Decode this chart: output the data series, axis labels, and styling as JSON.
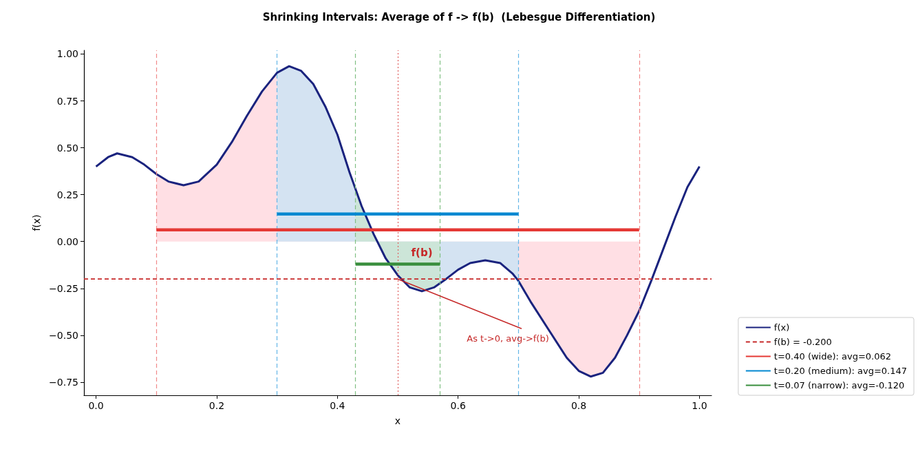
{
  "chart_data": {
    "type": "line",
    "title": "Shrinking Intervals: Average of f -> f(b)  (Lebesgue Differentiation)",
    "xlabel": "x",
    "ylabel": "f(x)",
    "xlim": [
      -0.02,
      1.02
    ],
    "ylim": [
      -0.82,
      1.02
    ],
    "xticks": [
      {
        "value": 0,
        "label": "0.0"
      },
      {
        "value": 0.2,
        "label": "0.2"
      },
      {
        "value": 0.4,
        "label": "0.4"
      },
      {
        "value": 0.6,
        "label": "0.6"
      },
      {
        "value": 0.8,
        "label": "0.8"
      },
      {
        "value": 1,
        "label": "1.0"
      }
    ],
    "yticks": [
      {
        "value": -0.75,
        "label": "−0.75"
      },
      {
        "value": -0.5,
        "label": "−0.50"
      },
      {
        "value": -0.25,
        "label": "−0.25"
      },
      {
        "value": 0,
        "label": "0.00"
      },
      {
        "value": 0.25,
        "label": "0.25"
      },
      {
        "value": 0.5,
        "label": "0.50"
      },
      {
        "value": 0.75,
        "label": "0.75"
      },
      {
        "value": 1,
        "label": "1.00"
      }
    ],
    "grid": false,
    "legend": "bottom right",
    "series": [
      {
        "name": "f(x)",
        "color": "#1a237e",
        "x": [
          0,
          0.02,
          0.035,
          0.06,
          0.08,
          0.1,
          0.12,
          0.145,
          0.17,
          0.2,
          0.225,
          0.25,
          0.275,
          0.3,
          0.32,
          0.34,
          0.36,
          0.38,
          0.4,
          0.42,
          0.44,
          0.46,
          0.48,
          0.5,
          0.52,
          0.54,
          0.56,
          0.58,
          0.6,
          0.62,
          0.645,
          0.67,
          0.69,
          0.7,
          0.72,
          0.75,
          0.78,
          0.8,
          0.82,
          0.84,
          0.86,
          0.88,
          0.9,
          0.92,
          0.94,
          0.96,
          0.98,
          1.0
        ],
        "values": [
          0.4,
          0.45,
          0.47,
          0.45,
          0.41,
          0.36,
          0.32,
          0.3,
          0.32,
          0.41,
          0.53,
          0.67,
          0.8,
          0.9,
          0.935,
          0.91,
          0.84,
          0.72,
          0.57,
          0.37,
          0.19,
          0.04,
          -0.09,
          -0.18,
          -0.245,
          -0.265,
          -0.245,
          -0.2,
          -0.15,
          -0.115,
          -0.1,
          -0.115,
          -0.17,
          -0.21,
          -0.32,
          -0.47,
          -0.62,
          -0.69,
          -0.72,
          -0.7,
          -0.62,
          -0.5,
          -0.37,
          -0.21,
          -0.04,
          0.13,
          0.29,
          0.4
        ]
      },
      {
        "name": "f(b) = -0.200",
        "color": "#c62828",
        "line_style": "dashed",
        "x": [
          -0.02,
          1.02
        ],
        "values": [
          -0.2,
          -0.2
        ]
      },
      {
        "name": "t=0.40 (wide): avg=0.062",
        "color": "#e53935",
        "x": [
          0.1,
          0.9
        ],
        "values": [
          0.062,
          0.062
        ]
      },
      {
        "name": "t=0.20 (medium): avg=0.147",
        "color": "#0288d1",
        "x": [
          0.3,
          0.7
        ],
        "values": [
          0.147,
          0.147
        ]
      },
      {
        "name": "t=0.07 (narrow): avg=-0.120",
        "color": "#388e3c",
        "x": [
          0.43,
          0.57
        ],
        "values": [
          -0.12,
          -0.12
        ]
      },
      {
        "type": "area",
        "color": "#ffdfe4",
        "x": [
          0.1,
          0.12,
          0.145,
          0.17,
          0.2,
          0.225,
          0.25,
          0.275,
          0.3,
          0.32,
          0.34,
          0.36,
          0.38,
          0.4,
          0.42,
          0.44,
          0.46,
          0.48,
          0.5,
          0.52,
          0.54,
          0.56,
          0.58,
          0.6,
          0.62,
          0.645,
          0.67,
          0.69,
          0.7,
          0.72,
          0.75,
          0.78,
          0.8,
          0.82,
          0.84,
          0.86,
          0.88,
          0.9
        ],
        "values": [
          0.36,
          0.32,
          0.3,
          0.32,
          0.41,
          0.53,
          0.67,
          0.8,
          0.9,
          0.935,
          0.91,
          0.84,
          0.72,
          0.57,
          0.37,
          0.19,
          0.04,
          -0.09,
          -0.18,
          -0.245,
          -0.265,
          -0.245,
          -0.2,
          -0.15,
          -0.115,
          -0.1,
          -0.115,
          -0.17,
          -0.21,
          -0.32,
          -0.47,
          -0.62,
          -0.69,
          -0.72,
          -0.7,
          -0.62,
          -0.5,
          -0.37
        ]
      },
      {
        "type": "area",
        "color": "#d4e3f2",
        "x": [
          0.3,
          0.32,
          0.34,
          0.36,
          0.38,
          0.4,
          0.42,
          0.44,
          0.46,
          0.48,
          0.5,
          0.52,
          0.54,
          0.56,
          0.58,
          0.6,
          0.62,
          0.645,
          0.67,
          0.69,
          0.7
        ],
        "values": [
          0.9,
          0.935,
          0.91,
          0.84,
          0.72,
          0.57,
          0.37,
          0.19,
          0.04,
          -0.09,
          -0.18,
          -0.245,
          -0.265,
          -0.245,
          -0.2,
          -0.15,
          -0.115,
          -0.1,
          -0.115,
          -0.17,
          -0.21
        ]
      },
      {
        "type": "area",
        "color": "#cce5d8",
        "x": [
          0.43,
          0.44,
          0.46,
          0.48,
          0.5,
          0.52,
          0.54,
          0.56,
          0.57
        ],
        "values": [
          0.28,
          0.19,
          0.04,
          -0.09,
          -0.18,
          -0.245,
          -0.265,
          -0.245,
          -0.225
        ]
      }
    ],
    "ref_lines": [
      {
        "axis": "x",
        "value": 0.1,
        "color": "#f08a8a",
        "line_style": "dashed"
      },
      {
        "axis": "x",
        "value": 0.9,
        "color": "#f08a8a",
        "line_style": "dashed"
      },
      {
        "axis": "x",
        "value": 0.3,
        "color": "#64b5e6",
        "line_style": "dashed"
      },
      {
        "axis": "x",
        "value": 0.7,
        "color": "#64b5e6",
        "line_style": "dashed"
      },
      {
        "axis": "x",
        "value": 0.43,
        "color": "#81c084",
        "line_style": "dashed"
      },
      {
        "axis": "x",
        "value": 0.57,
        "color": "#81c084",
        "line_style": "dashed"
      },
      {
        "axis": "x",
        "value": 0.5,
        "color": "#e06060",
        "line_style": "dotted"
      }
    ],
    "annotations": [
      {
        "text": "f(b)",
        "x": 0.54,
        "y": -0.12
      },
      {
        "text": "As t->0, avg->f(b)",
        "x": 0.5,
        "y": -0.2
      }
    ]
  }
}
